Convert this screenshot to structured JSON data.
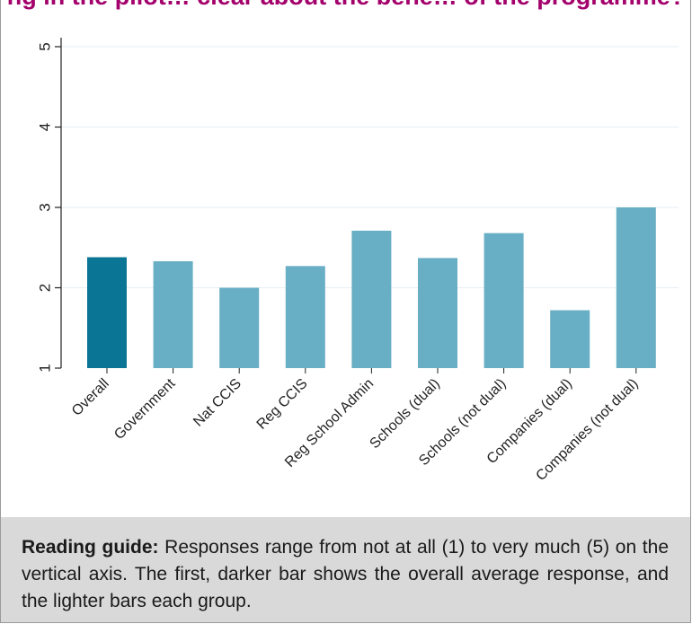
{
  "title": "ng in the pilot… clear about the bene… of the programme?",
  "chart_data": {
    "type": "bar",
    "categories": [
      "Overall",
      "Government",
      "Nat CCIS",
      "Reg CCIS",
      "Reg School Admin",
      "Schools (dual)",
      "Schools (not dual)",
      "Companies (dual)",
      "Companies (not dual)"
    ],
    "values": [
      2.38,
      2.33,
      2.0,
      2.27,
      2.71,
      2.37,
      2.68,
      1.72,
      3.0
    ],
    "ylim": [
      1,
      5
    ],
    "yticks": [
      1,
      2,
      3,
      4,
      5
    ],
    "grid": true,
    "colors": {
      "highlight": "#0a7595",
      "bar": "#68aec4",
      "grid": "#e6eef2",
      "axis": "#222222"
    }
  },
  "reading_guide": {
    "label": "Reading guide:",
    "text": " Responses range from not at all (1) to very much (5) on the vertical axis. The first, darker bar shows the overall average response, and the lighter bars each group."
  }
}
